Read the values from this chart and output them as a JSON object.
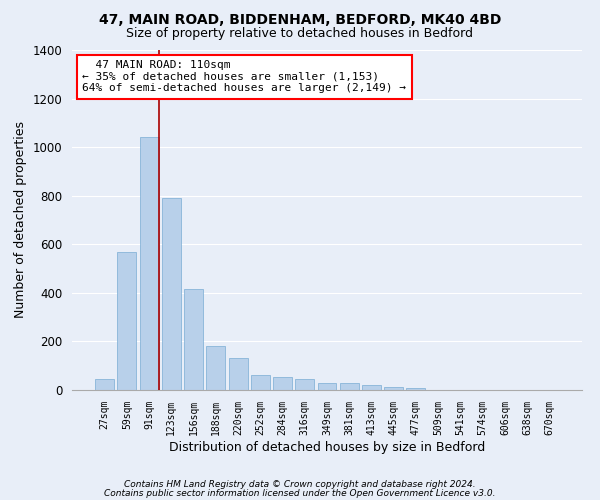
{
  "title1": "47, MAIN ROAD, BIDDENHAM, BEDFORD, MK40 4BD",
  "title2": "Size of property relative to detached houses in Bedford",
  "xlabel": "Distribution of detached houses by size in Bedford",
  "ylabel": "Number of detached properties",
  "bar_color": "#b8d0ea",
  "bar_edge_color": "#7aadd4",
  "background_color": "#e8eef8",
  "grid_color": "#ffffff",
  "categories": [
    "27sqm",
    "59sqm",
    "91sqm",
    "123sqm",
    "156sqm",
    "188sqm",
    "220sqm",
    "252sqm",
    "284sqm",
    "316sqm",
    "349sqm",
    "381sqm",
    "413sqm",
    "445sqm",
    "477sqm",
    "509sqm",
    "541sqm",
    "574sqm",
    "606sqm",
    "638sqm",
    "670sqm"
  ],
  "values": [
    45,
    570,
    1040,
    790,
    415,
    180,
    130,
    60,
    55,
    45,
    30,
    27,
    20,
    12,
    10,
    0,
    0,
    0,
    0,
    0,
    0
  ],
  "ylim": [
    0,
    1400
  ],
  "yticks": [
    0,
    200,
    400,
    600,
    800,
    1000,
    1200,
    1400
  ],
  "annotation_text": "  47 MAIN ROAD: 110sqm  \n← 35% of detached houses are smaller (1,153)\n64% of semi-detached houses are larger (2,149) →",
  "vline_bar_index": 2,
  "footnote1": "Contains HM Land Registry data © Crown copyright and database right 2024.",
  "footnote2": "Contains public sector information licensed under the Open Government Licence v3.0."
}
